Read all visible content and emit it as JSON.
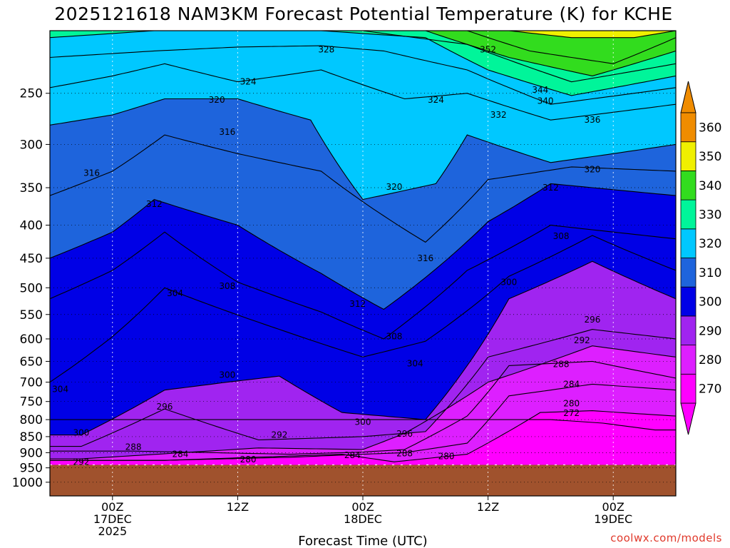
{
  "chart_data": {
    "type": "contour",
    "title": "2025121618 NAM3KM Forecast Potential Temperature (K) for KCHE",
    "xlabel": "Forecast Time (UTC)",
    "ylabel": "",
    "y_axis": {
      "scale": "log-pressure",
      "unit": "hPa",
      "ticks": [
        250,
        300,
        350,
        400,
        450,
        500,
        550,
        600,
        650,
        700,
        750,
        800,
        850,
        900,
        950,
        1000
      ],
      "range": [
        1050,
        200
      ]
    },
    "x_axis": {
      "ticks": [
        {
          "hours": 6,
          "label1": "00Z",
          "label2": "17DEC",
          "label3": "2025"
        },
        {
          "hours": 18,
          "label1": "12Z",
          "label2": "",
          "label3": ""
        },
        {
          "hours": 30,
          "label1": "00Z",
          "label2": "18DEC",
          "label3": ""
        },
        {
          "hours": 42,
          "label1": "12Z",
          "label2": "",
          "label3": ""
        },
        {
          "hours": 54,
          "label1": "00Z",
          "label2": "19DEC",
          "label3": ""
        }
      ],
      "range_hours": [
        0,
        60
      ]
    },
    "colorbar": {
      "levels": [
        270,
        280,
        290,
        300,
        310,
        320,
        330,
        340,
        350,
        360
      ],
      "colors": [
        "#ff00ff",
        "#dd1fff",
        "#a024f0",
        "#0000e6",
        "#1e64dc",
        "#00c8ff",
        "#00f59a",
        "#32dc1e",
        "#f0f000",
        "#f08c00"
      ],
      "low_color": "#ff00ff",
      "high_color": "#f08c00"
    },
    "isentropes": [
      {
        "theta": 272,
        "points": [
          [
            48,
            800
          ],
          [
            53,
            810
          ],
          [
            58,
            830
          ]
        ]
      },
      {
        "theta": 280,
        "points": [
          [
            11,
            925
          ],
          [
            28,
            905
          ],
          [
            33,
            930
          ],
          [
            40,
            905
          ],
          [
            47,
            780
          ],
          [
            52,
            775
          ],
          [
            60,
            790
          ]
        ]
      },
      {
        "theta": 284,
        "points": [
          [
            11,
            925
          ],
          [
            23,
            915
          ],
          [
            30,
            905
          ],
          [
            34,
            900
          ],
          [
            40,
            870
          ],
          [
            44,
            735
          ],
          [
            52,
            705
          ],
          [
            60,
            720
          ]
        ]
      },
      {
        "theta": 288,
        "points": [
          [
            8,
            895
          ],
          [
            23,
            905
          ],
          [
            30,
            898
          ],
          [
            34,
            890
          ],
          [
            40,
            790
          ],
          [
            44,
            660
          ],
          [
            52,
            650
          ],
          [
            60,
            690
          ]
        ]
      },
      {
        "theta": 292,
        "points": [
          [
            3,
            920
          ],
          [
            20,
            885
          ],
          [
            30,
            890
          ],
          [
            34,
            840
          ],
          [
            42,
            700
          ],
          [
            52,
            615
          ],
          [
            60,
            640
          ]
        ]
      },
      {
        "theta": 296,
        "points": [
          [
            3,
            880
          ],
          [
            11,
            770
          ],
          [
            20,
            860
          ],
          [
            30,
            850
          ],
          [
            36,
            835
          ],
          [
            42,
            640
          ],
          [
            52,
            580
          ],
          [
            60,
            600
          ]
        ]
      },
      {
        "theta": 300,
        "points": [
          [
            3,
            845
          ],
          [
            11,
            720
          ],
          [
            17,
            700
          ],
          [
            22,
            685
          ],
          [
            28,
            780
          ],
          [
            36,
            800
          ],
          [
            44,
            520
          ],
          [
            52,
            455
          ],
          [
            60,
            520
          ]
        ]
      },
      {
        "theta": 304,
        "points": [
          [
            0,
            700
          ],
          [
            6,
            595
          ],
          [
            11,
            500
          ],
          [
            22,
            580
          ],
          [
            30,
            640
          ],
          [
            36,
            605
          ],
          [
            44,
            480
          ],
          [
            52,
            415
          ],
          [
            60,
            470
          ]
        ]
      },
      {
        "theta": 308,
        "points": [
          [
            0,
            520
          ],
          [
            6,
            470
          ],
          [
            11,
            410
          ],
          [
            18,
            490
          ],
          [
            26,
            545
          ],
          [
            32,
            600
          ],
          [
            40,
            470
          ],
          [
            48,
            400
          ],
          [
            60,
            420
          ]
        ]
      },
      {
        "theta": 312,
        "points": [
          [
            0,
            450
          ],
          [
            6,
            410
          ],
          [
            10,
            365
          ],
          [
            18,
            400
          ],
          [
            26,
            475
          ],
          [
            32,
            540
          ],
          [
            42,
            395
          ],
          [
            48,
            345
          ],
          [
            60,
            360
          ]
        ]
      },
      {
        "theta": 316,
        "points": [
          [
            0,
            360
          ],
          [
            6,
            330
          ],
          [
            11,
            290
          ],
          [
            18,
            310
          ],
          [
            26,
            330
          ],
          [
            36,
            425
          ],
          [
            42,
            340
          ],
          [
            50,
            325
          ],
          [
            60,
            330
          ]
        ]
      },
      {
        "theta": 320,
        "points": [
          [
            0,
            280
          ],
          [
            6,
            270
          ],
          [
            11,
            255
          ],
          [
            18,
            255
          ],
          [
            25,
            275
          ],
          [
            30,
            365
          ],
          [
            37,
            345
          ],
          [
            40,
            290
          ],
          [
            48,
            320
          ],
          [
            60,
            300
          ]
        ]
      },
      {
        "theta": 324,
        "points": [
          [
            0,
            245
          ],
          [
            6,
            235
          ],
          [
            11,
            225
          ],
          [
            18,
            240
          ],
          [
            26,
            230
          ],
          [
            34,
            255
          ],
          [
            40,
            250
          ],
          [
            48,
            275
          ],
          [
            60,
            260
          ]
        ]
      },
      {
        "theta": 328,
        "points": [
          [
            0,
            220
          ],
          [
            10,
            215
          ],
          [
            18,
            212
          ],
          [
            26,
            211
          ],
          [
            32,
            215
          ],
          [
            40,
            230
          ],
          [
            48,
            260
          ],
          [
            60,
            245
          ]
        ]
      },
      {
        "theta": 332,
        "points": [
          [
            0,
            205
          ],
          [
            10,
            200
          ],
          [
            26,
            200
          ],
          [
            36,
            205
          ],
          [
            42,
            230
          ],
          [
            50,
            252
          ],
          [
            60,
            235
          ]
        ]
      },
      {
        "theta": 336,
        "points": [
          [
            6,
            200
          ],
          [
            30,
            200
          ],
          [
            40,
            210
          ],
          [
            50,
            240
          ],
          [
            60,
            225
          ]
        ]
      },
      {
        "theta": 340,
        "points": [
          [
            36,
            200
          ],
          [
            44,
            220
          ],
          [
            52,
            235
          ],
          [
            60,
            215
          ]
        ]
      },
      {
        "theta": 344,
        "points": [
          [
            40,
            200
          ],
          [
            46,
            215
          ],
          [
            54,
            225
          ],
          [
            60,
            205
          ]
        ]
      },
      {
        "theta": 352,
        "points": [
          [
            44,
            200
          ],
          [
            50,
            205
          ],
          [
            56,
            205
          ],
          [
            60,
            200
          ]
        ]
      }
    ],
    "contour_labels": [
      {
        "text": "328",
        "hours": 26.5,
        "p": 214
      },
      {
        "text": "352",
        "hours": 42,
        "p": 214
      },
      {
        "text": "324",
        "hours": 19,
        "p": 240
      },
      {
        "text": "344",
        "hours": 47,
        "p": 247
      },
      {
        "text": "320",
        "hours": 16,
        "p": 256
      },
      {
        "text": "324",
        "hours": 37,
        "p": 256
      },
      {
        "text": "340",
        "hours": 47.5,
        "p": 257
      },
      {
        "text": "332",
        "hours": 43,
        "p": 270
      },
      {
        "text": "336",
        "hours": 52,
        "p": 275
      },
      {
        "text": "316",
        "hours": 17,
        "p": 287
      },
      {
        "text": "316",
        "hours": 4,
        "p": 332
      },
      {
        "text": "320",
        "hours": 52,
        "p": 328
      },
      {
        "text": "320",
        "hours": 33,
        "p": 349
      },
      {
        "text": "312",
        "hours": 10,
        "p": 371
      },
      {
        "text": "312",
        "hours": 48,
        "p": 350
      },
      {
        "text": "308",
        "hours": 49,
        "p": 416
      },
      {
        "text": "316",
        "hours": 36,
        "p": 450
      },
      {
        "text": "300",
        "hours": 44,
        "p": 490
      },
      {
        "text": "308",
        "hours": 17,
        "p": 497
      },
      {
        "text": "304",
        "hours": 12,
        "p": 510
      },
      {
        "text": "312",
        "hours": 29.5,
        "p": 530
      },
      {
        "text": "296",
        "hours": 52,
        "p": 560
      },
      {
        "text": "308",
        "hours": 33,
        "p": 595
      },
      {
        "text": "292",
        "hours": 51,
        "p": 603
      },
      {
        "text": "304",
        "hours": 35,
        "p": 655
      },
      {
        "text": "288",
        "hours": 49,
        "p": 657
      },
      {
        "text": "300",
        "hours": 17,
        "p": 682
      },
      {
        "text": "284",
        "hours": 50,
        "p": 705
      },
      {
        "text": "304",
        "hours": 1,
        "p": 718
      },
      {
        "text": "280",
        "hours": 50,
        "p": 755
      },
      {
        "text": "296",
        "hours": 11,
        "p": 764
      },
      {
        "text": "272",
        "hours": 50,
        "p": 782
      },
      {
        "text": "300",
        "hours": 30,
        "p": 807
      },
      {
        "text": "300",
        "hours": 3,
        "p": 838
      },
      {
        "text": "292",
        "hours": 22,
        "p": 845
      },
      {
        "text": "296",
        "hours": 34,
        "p": 842
      },
      {
        "text": "288",
        "hours": 8,
        "p": 882
      },
      {
        "text": "284",
        "hours": 12.5,
        "p": 905
      },
      {
        "text": "284",
        "hours": 29,
        "p": 908
      },
      {
        "text": "288",
        "hours": 34,
        "p": 903
      },
      {
        "text": "280",
        "hours": 38,
        "p": 912
      },
      {
        "text": "292",
        "hours": 3,
        "p": 930
      },
      {
        "text": "280",
        "hours": 19,
        "p": 922
      }
    ],
    "surface": {
      "p": 940,
      "color": "#a0522d"
    },
    "grid": true
  },
  "credit": "coolwx.com/models"
}
